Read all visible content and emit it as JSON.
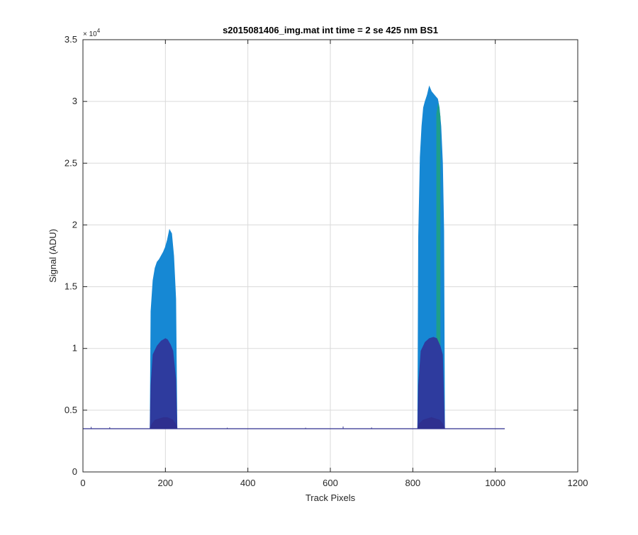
{
  "chart_data": {
    "type": "area",
    "title": "s2015081406_img.mat int time = 2 se  425 nm BS1",
    "xlabel": "Track Pixels",
    "ylabel": "Signal (ADU)",
    "xlim": [
      0,
      1200
    ],
    "ylim": [
      0,
      35000
    ],
    "x_ticks": [
      0,
      200,
      400,
      600,
      800,
      1000,
      1200
    ],
    "x_tick_labels": [
      "0",
      "200",
      "400",
      "600",
      "800",
      "1000",
      "1200"
    ],
    "y_ticks": [
      0,
      5000,
      10000,
      15000,
      20000,
      25000,
      30000,
      35000
    ],
    "y_tick_labels": [
      "0",
      "0.5",
      "1",
      "1.5",
      "2",
      "2.5",
      "3",
      "3.5"
    ],
    "y_exponent_label": "× 10",
    "y_exponent_power": "4",
    "grid": true,
    "baseline": 3500,
    "x_max": 1023,
    "series": [
      {
        "color": "#2f2f8f",
        "peaks": [
          {
            "x": [
              163,
              168,
              175,
              185,
              195,
              205,
              212,
              218,
              224,
              228
            ],
            "y": [
              3500,
              3900,
              4200,
              4300,
              4400,
              4400,
              4300,
              4200,
              3900,
              3500
            ]
          },
          {
            "x": [
              812,
              816,
              825,
              835,
              845,
              855,
              865,
              872,
              877
            ],
            "y": [
              3500,
              3900,
              4200,
              4300,
              4400,
              4300,
              4200,
              3900,
              3500
            ]
          }
        ]
      },
      {
        "color": "#2e3b9e",
        "peaks": [
          {
            "x": [
              163,
              165,
              170,
              180,
              190,
              200,
              205,
              212,
              218,
              225,
              228
            ],
            "y": [
              3500,
              7000,
              9500,
              10200,
              10600,
              10800,
              10700,
              10300,
              9800,
              7500,
              3500
            ]
          },
          {
            "x": [
              812,
              814,
              820,
              830,
              840,
              850,
              858,
              866,
              872,
              877
            ],
            "y": [
              3500,
              7000,
              9800,
              10500,
              10800,
              10900,
              10800,
              10200,
              9500,
              3500
            ]
          }
        ]
      },
      {
        "color": "#1688d4",
        "peaks": [
          {
            "x": [
              163,
              165,
              170,
              175,
              180,
              185,
              190,
              195,
              200,
              205,
              210,
              215,
              220,
              225,
              228
            ],
            "y": [
              3500,
              13000,
              15500,
              16500,
              17000,
              17200,
              17500,
              17800,
              18200,
              18800,
              19600,
              19300,
              17500,
              14000,
              3500
            ]
          },
          {
            "x": [
              812,
              814,
              818,
              822,
              826,
              830,
              835,
              840,
              845,
              850,
              855,
              860,
              864,
              868,
              872,
              875,
              877
            ],
            "y": [
              3500,
              19000,
              25500,
              28000,
              29500,
              30000,
              30500,
              31200,
              30800,
              30600,
              30400,
              30200,
              29500,
              28000,
              25000,
              19500,
              3500
            ]
          }
        ]
      },
      {
        "color": "#1f9e8a",
        "peaks": [
          {
            "x": [
              858,
              862,
              866
            ],
            "y": [
              29000,
              29800,
              28800
            ]
          }
        ]
      },
      {
        "color": "#3c3c90",
        "noise_spikes": [
          {
            "x": 20,
            "y": 3650
          },
          {
            "x": 65,
            "y": 3620
          },
          {
            "x": 350,
            "y": 3580
          },
          {
            "x": 540,
            "y": 3580
          },
          {
            "x": 631,
            "y": 3680
          },
          {
            "x": 700,
            "y": 3600
          }
        ]
      }
    ]
  }
}
